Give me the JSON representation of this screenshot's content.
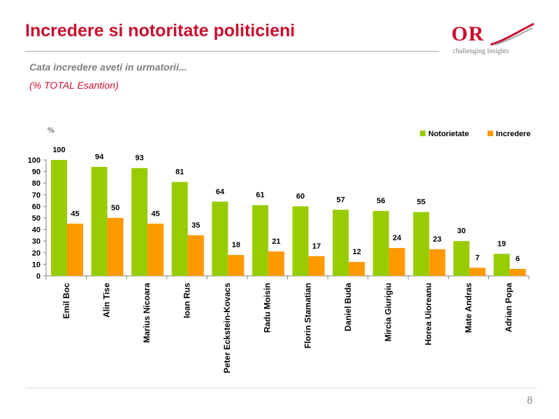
{
  "slide": {
    "title": "Incredere si notoritate politicieni",
    "subtitle": "Cata incredere aveti in urmatorii...",
    "subtitle2": "(% TOTAL Esantion)",
    "page_number": "8"
  },
  "logo": {
    "text": "OR",
    "tagline": "challenging insights"
  },
  "colors": {
    "title": "#c8102e",
    "notorietate": "#99cc00",
    "incredere": "#ff9900"
  },
  "chart_data": {
    "type": "bar",
    "unit_label": "%",
    "categories": [
      "Emil Boc",
      "Alin Tise",
      "Marius Nicoara",
      "Ioan Rus",
      "Peter Eckstein-Kovacs",
      "Radu Moisin",
      "Florin Stamatian",
      "Daniel Buda",
      "Mircia Giurigiu",
      "Horea Uioreanu",
      "Mate Andras",
      "Adrian Popa"
    ],
    "series": [
      {
        "name": "Notorietate",
        "color": "#99cc00",
        "values": [
          100,
          94,
          93,
          81,
          64,
          61,
          60,
          57,
          56,
          55,
          30,
          19
        ]
      },
      {
        "name": "Incredere",
        "color": "#ff9900",
        "values": [
          45,
          50,
          45,
          35,
          18,
          21,
          17,
          12,
          24,
          23,
          7,
          6
        ]
      }
    ],
    "yticks": [
      0,
      10,
      20,
      30,
      40,
      50,
      60,
      70,
      80,
      90,
      100
    ],
    "ylim": [
      0,
      100
    ],
    "grid": false,
    "legend_position": "top-right"
  }
}
